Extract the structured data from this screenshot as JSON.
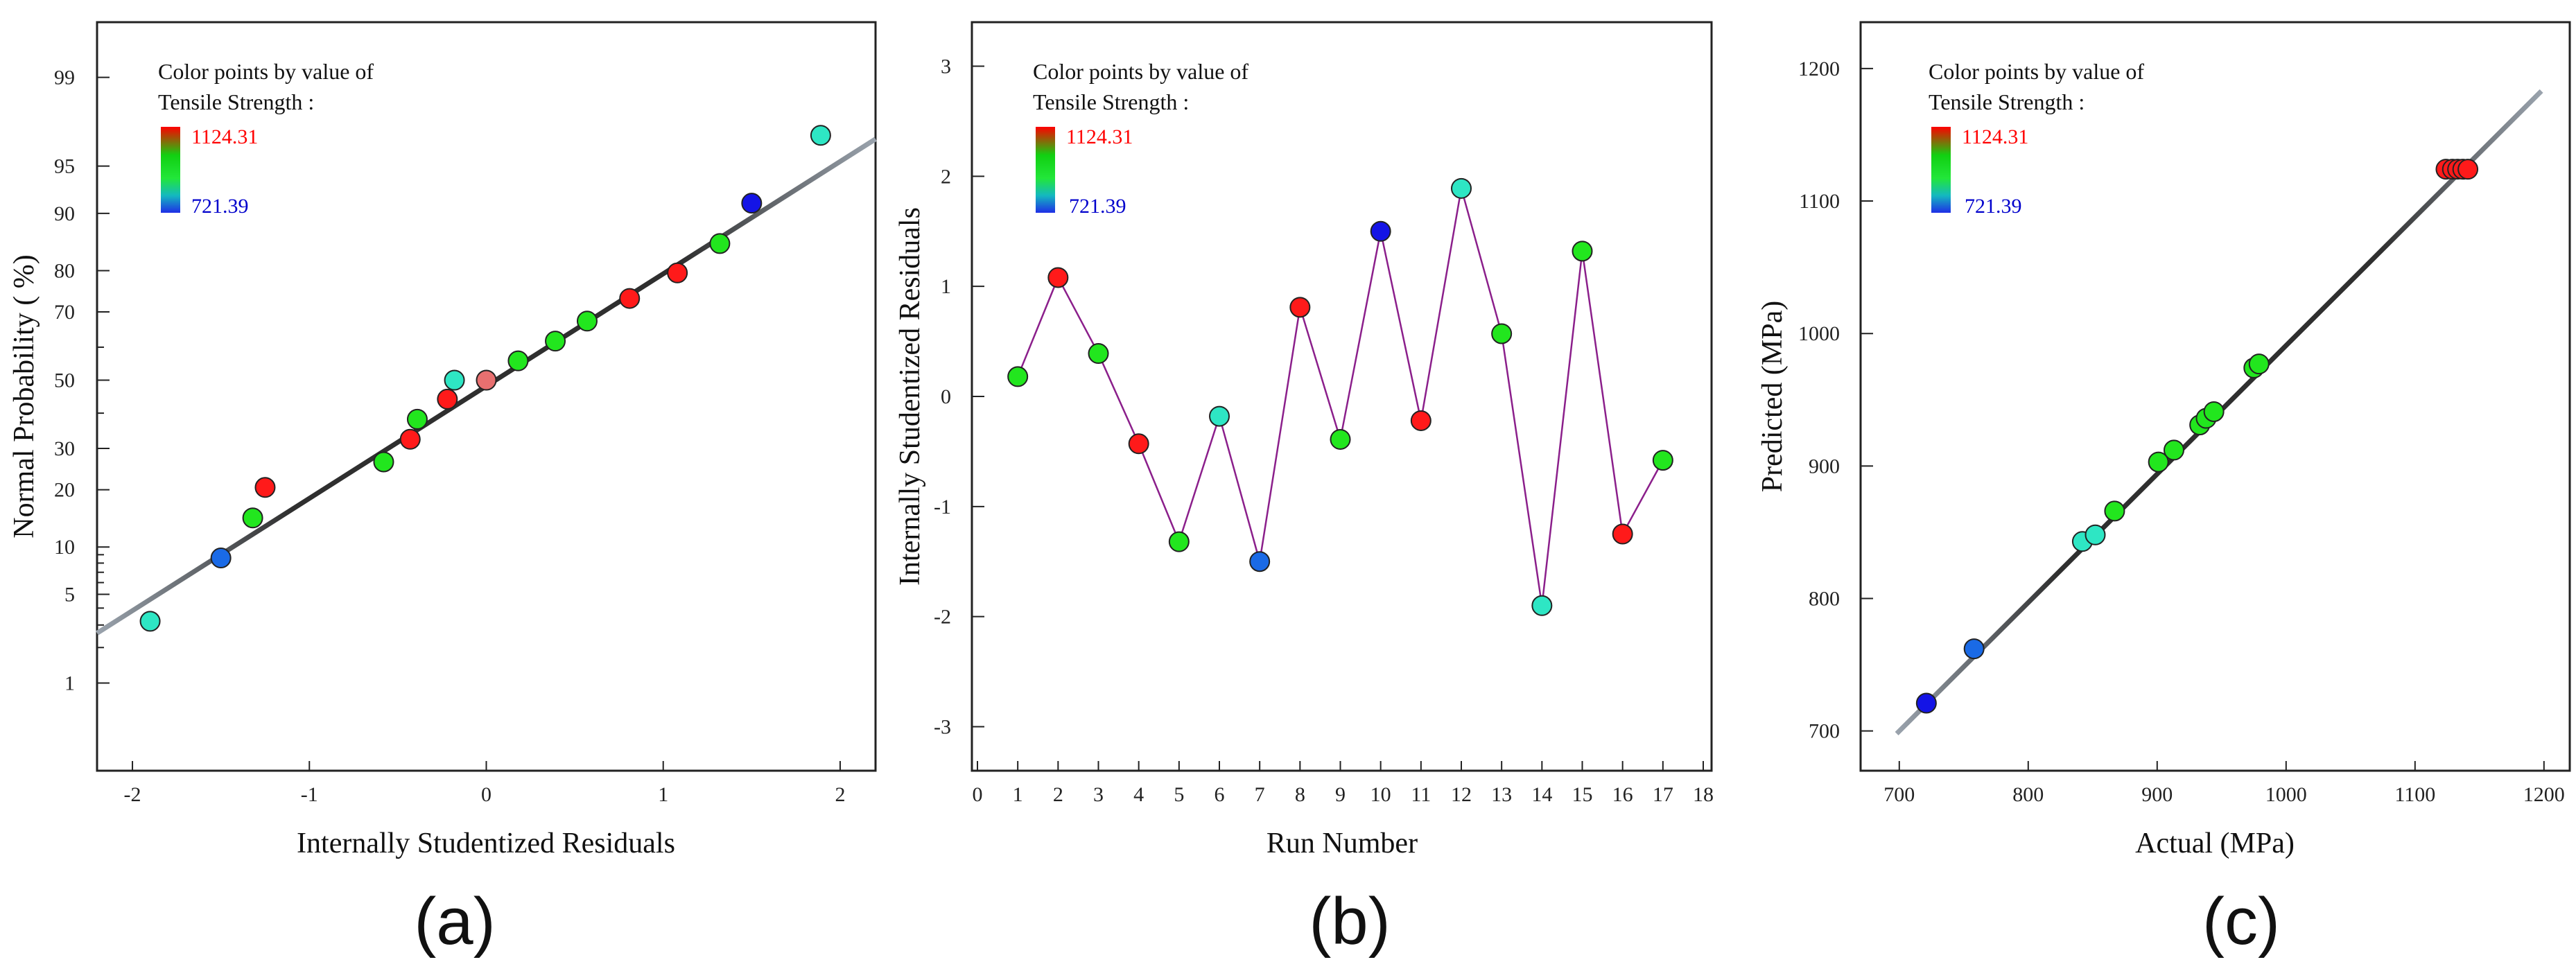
{
  "figure_labels": [
    "(a)",
    "(b)",
    "(c)"
  ],
  "legend": {
    "line1": "Color points by value of",
    "line2": "Tensile Strength :",
    "max": "1124.31",
    "min": "721.39"
  },
  "colors": {
    "red": "#ff1a1a",
    "green": "#22e61e",
    "cyan": "#2ee6c4",
    "blue": "#1a6ae6",
    "darkblue": "#1414e6",
    "pink": "#e87070",
    "fitline": "#2f2f2f",
    "runline": "#8b1f8b",
    "zeroline": "#333333"
  },
  "chart_data": [
    {
      "id": "a",
      "type": "scatter",
      "title": "",
      "xlabel": "Internally Studentized Residuals",
      "ylabel": "Normal Probability ( %)",
      "xlim": [
        -2.2,
        2.2
      ],
      "xticks": [
        -2,
        -1,
        0,
        1,
        2
      ],
      "yticks_labeled": [
        1,
        5,
        10,
        20,
        30,
        50,
        70,
        80,
        90,
        95,
        99
      ],
      "yticks_minor": [
        2,
        3,
        4,
        6,
        7,
        8,
        9,
        40,
        60
      ],
      "points": [
        {
          "x": -1.9,
          "p": 3.2,
          "c": "cyan"
        },
        {
          "x": -1.5,
          "p": 8.6,
          "c": "blue"
        },
        {
          "x": -1.32,
          "p": 14.5,
          "c": "green"
        },
        {
          "x": -1.25,
          "p": 20.5,
          "c": "red"
        },
        {
          "x": -0.58,
          "p": 26.5,
          "c": "green"
        },
        {
          "x": -0.43,
          "p": 32.5,
          "c": "red"
        },
        {
          "x": -0.39,
          "p": 38.2,
          "c": "green"
        },
        {
          "x": -0.22,
          "p": 44.2,
          "c": "red"
        },
        {
          "x": -0.18,
          "p": 50.0,
          "c": "cyan"
        },
        {
          "x": 0.0,
          "p": 50.0,
          "c": "pink"
        },
        {
          "x": 0.18,
          "p": 55.9,
          "c": "green"
        },
        {
          "x": 0.39,
          "p": 61.8,
          "c": "green"
        },
        {
          "x": 0.57,
          "p": 67.5,
          "c": "green"
        },
        {
          "x": 0.81,
          "p": 73.5,
          "c": "red"
        },
        {
          "x": 1.08,
          "p": 79.5,
          "c": "red"
        },
        {
          "x": 1.32,
          "p": 85.3,
          "c": "green"
        },
        {
          "x": 1.5,
          "p": 91.3,
          "c": "darkblue"
        },
        {
          "x": 1.89,
          "p": 97.0,
          "c": "cyan"
        }
      ],
      "fit_line": {
        "x": [
          -2.2,
          2.2
        ],
        "p": [
          2.6,
          96.8
        ]
      }
    },
    {
      "id": "b",
      "type": "line",
      "title": "",
      "xlabel": "Run Number",
      "ylabel": "Internally Studentized Residuals",
      "xlim": [
        0,
        18
      ],
      "ylim": [
        -3.4,
        3.4
      ],
      "xticks": [
        0,
        1,
        2,
        3,
        4,
        5,
        6,
        7,
        8,
        9,
        10,
        11,
        12,
        13,
        14,
        15,
        16,
        17,
        18
      ],
      "yticks": [
        -3,
        -2,
        -1,
        0,
        1,
        2,
        3
      ],
      "x": [
        1,
        2,
        3,
        4,
        5,
        6,
        7,
        8,
        9,
        10,
        11,
        12,
        13,
        14,
        15,
        16,
        17
      ],
      "values": [
        0.18,
        1.08,
        0.39,
        -0.43,
        -1.32,
        -0.18,
        -1.5,
        0.81,
        -0.39,
        1.5,
        -0.22,
        1.89,
        0.57,
        -1.9,
        1.32,
        -1.25,
        -0.58
      ],
      "point_colors": [
        "green",
        "red",
        "green",
        "red",
        "green",
        "cyan",
        "blue",
        "red",
        "green",
        "darkblue",
        "red",
        "cyan",
        "green",
        "cyan",
        "green",
        "red",
        "green"
      ],
      "reference_line": 0
    },
    {
      "id": "c",
      "type": "scatter",
      "title": "",
      "xlabel": "Actual (MPa)",
      "ylabel": "Predicted (MPa)",
      "xlim": [
        670,
        1220
      ],
      "ylim": [
        670,
        1235
      ],
      "xticks": [
        700,
        800,
        900,
        1000,
        1100,
        1200
      ],
      "yticks": [
        700,
        800,
        900,
        1000,
        1100,
        1200
      ],
      "points": [
        {
          "x": 721,
          "y": 721,
          "c": "darkblue"
        },
        {
          "x": 758,
          "y": 762,
          "c": "blue"
        },
        {
          "x": 842,
          "y": 843,
          "c": "cyan"
        },
        {
          "x": 852,
          "y": 848,
          "c": "cyan"
        },
        {
          "x": 867,
          "y": 866,
          "c": "green"
        },
        {
          "x": 901,
          "y": 903,
          "c": "green"
        },
        {
          "x": 913,
          "y": 912,
          "c": "green"
        },
        {
          "x": 933,
          "y": 931,
          "c": "green"
        },
        {
          "x": 938,
          "y": 936,
          "c": "green"
        },
        {
          "x": 944,
          "y": 941,
          "c": "green"
        },
        {
          "x": 975,
          "y": 974,
          "c": "green"
        },
        {
          "x": 979,
          "y": 977,
          "c": "green"
        },
        {
          "x": 1124,
          "y": 1124,
          "c": "red"
        },
        {
          "x": 1129,
          "y": 1124,
          "c": "red"
        },
        {
          "x": 1133,
          "y": 1124,
          "c": "red"
        },
        {
          "x": 1137,
          "y": 1124,
          "c": "red"
        },
        {
          "x": 1141,
          "y": 1124,
          "c": "red"
        }
      ],
      "fit_line": {
        "x": [
          698,
          1198
        ],
        "y": [
          698,
          1183
        ]
      }
    }
  ]
}
